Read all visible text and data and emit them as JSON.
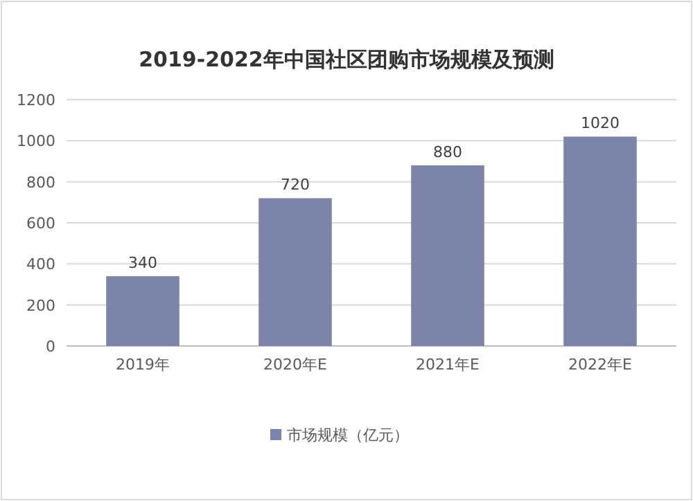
{
  "chart_data": {
    "type": "bar",
    "title": "2019-2022年中国社区团购市场规模及预测",
    "categories": [
      "2019年",
      "2020年E",
      "2021年E",
      "2022年E"
    ],
    "series": [
      {
        "name": "市场规模（亿元）",
        "color": "#7c84aa",
        "values": [
          340,
          720,
          880,
          1020
        ]
      }
    ],
    "ylim": [
      0,
      1200
    ],
    "yticks": [
      0,
      200,
      400,
      600,
      800,
      1000,
      1200
    ],
    "grid": "y",
    "legend": "bottom",
    "data_labels": true
  }
}
